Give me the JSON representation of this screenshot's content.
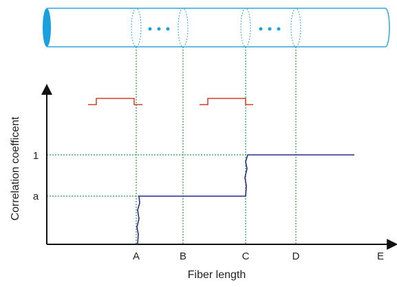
{
  "axes": {
    "y_label": "Correlation coefficent",
    "x_label": "Fiber length",
    "y_ticks": [
      "1",
      "a"
    ],
    "x_points": [
      "A",
      "B",
      "C",
      "D",
      "E"
    ]
  }
}
